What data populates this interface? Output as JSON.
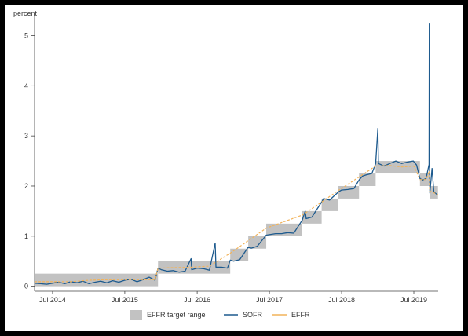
{
  "chart_data": {
    "type": "line",
    "ylabel": "percent",
    "ylim": [
      -0.1,
      5.4
    ],
    "y_ticks": [
      "0",
      "1",
      "2",
      "3",
      "4",
      "5"
    ],
    "y_tick_values": [
      0,
      1,
      2,
      3,
      4,
      5
    ],
    "x_ticks": [
      "Jul 2014",
      "Jul 2015",
      "Jul 2016",
      "Jul 2017",
      "Jul 2018",
      "Jul 2019"
    ],
    "x_tick_values": [
      "2014-07-01",
      "2015-07-01",
      "2016-07-01",
      "2017-07-01",
      "2018-07-01",
      "2019-07-01"
    ],
    "xlim": [
      "2014-04-01",
      "2019-11-01"
    ],
    "grid": false,
    "legend_position": "bottom",
    "legend": [
      {
        "label": "EFFR target range",
        "kind": "area"
      },
      {
        "label": "SOFR",
        "kind": "line"
      },
      {
        "label": "EFFR",
        "kind": "line"
      }
    ],
    "colors": {
      "target_range": "#c2c2c2",
      "sofr": "#1d5a8e",
      "effr": "#f2b35a",
      "frame": "#000000"
    },
    "target_range": [
      {
        "start": "2014-04-01",
        "end": "2015-12-16",
        "low": 0.0,
        "high": 0.25
      },
      {
        "start": "2015-12-16",
        "end": "2016-12-15",
        "low": 0.25,
        "high": 0.5
      },
      {
        "start": "2016-12-15",
        "end": "2017-03-16",
        "low": 0.5,
        "high": 0.75
      },
      {
        "start": "2017-03-16",
        "end": "2017-06-15",
        "low": 0.75,
        "high": 1.0
      },
      {
        "start": "2017-06-15",
        "end": "2017-12-14",
        "low": 1.0,
        "high": 1.25
      },
      {
        "start": "2017-12-14",
        "end": "2018-03-22",
        "low": 1.25,
        "high": 1.5
      },
      {
        "start": "2018-03-22",
        "end": "2018-06-14",
        "low": 1.5,
        "high": 1.75
      },
      {
        "start": "2018-06-14",
        "end": "2018-09-27",
        "low": 1.75,
        "high": 2.0
      },
      {
        "start": "2018-09-27",
        "end": "2018-12-20",
        "low": 2.0,
        "high": 2.25
      },
      {
        "start": "2018-12-20",
        "end": "2019-08-01",
        "low": 2.25,
        "high": 2.5
      },
      {
        "start": "2019-08-01",
        "end": "2019-09-19",
        "low": 2.0,
        "high": 2.25
      },
      {
        "start": "2019-09-19",
        "end": "2019-10-31",
        "low": 1.75,
        "high": 2.0
      }
    ],
    "series": [
      {
        "name": "SOFR",
        "points": [
          [
            "2014-04-01",
            0.06
          ],
          [
            "2014-05-01",
            0.05
          ],
          [
            "2014-06-01",
            0.04
          ],
          [
            "2014-07-01",
            0.06
          ],
          [
            "2014-08-01",
            0.08
          ],
          [
            "2014-09-01",
            0.05
          ],
          [
            "2014-10-01",
            0.09
          ],
          [
            "2014-11-01",
            0.07
          ],
          [
            "2014-12-01",
            0.1
          ],
          [
            "2015-01-01",
            0.05
          ],
          [
            "2015-02-01",
            0.08
          ],
          [
            "2015-03-01",
            0.1
          ],
          [
            "2015-04-01",
            0.07
          ],
          [
            "2015-05-01",
            0.11
          ],
          [
            "2015-06-01",
            0.08
          ],
          [
            "2015-07-01",
            0.12
          ],
          [
            "2015-08-01",
            0.14
          ],
          [
            "2015-09-01",
            0.09
          ],
          [
            "2015-10-01",
            0.13
          ],
          [
            "2015-11-01",
            0.18
          ],
          [
            "2015-12-01",
            0.12
          ],
          [
            "2015-12-16",
            0.36
          ],
          [
            "2016-01-01",
            0.33
          ],
          [
            "2016-02-01",
            0.3
          ],
          [
            "2016-03-01",
            0.31
          ],
          [
            "2016-04-01",
            0.28
          ],
          [
            "2016-05-01",
            0.3
          ],
          [
            "2016-05-31",
            0.55
          ],
          [
            "2016-06-03",
            0.33
          ],
          [
            "2016-07-01",
            0.36
          ],
          [
            "2016-08-01",
            0.35
          ],
          [
            "2016-09-01",
            0.32
          ],
          [
            "2016-09-30",
            0.86
          ],
          [
            "2016-10-04",
            0.38
          ],
          [
            "2016-11-01",
            0.38
          ],
          [
            "2016-12-01",
            0.36
          ],
          [
            "2016-12-15",
            0.52
          ],
          [
            "2017-01-01",
            0.5
          ],
          [
            "2017-02-01",
            0.53
          ],
          [
            "2017-03-16",
            0.78
          ],
          [
            "2017-04-01",
            0.76
          ],
          [
            "2017-05-01",
            0.8
          ],
          [
            "2017-06-15",
            1.02
          ],
          [
            "2017-07-01",
            1.03
          ],
          [
            "2017-08-01",
            1.05
          ],
          [
            "2017-09-01",
            1.05
          ],
          [
            "2017-10-01",
            1.07
          ],
          [
            "2017-11-01",
            1.06
          ],
          [
            "2017-12-14",
            1.32
          ],
          [
            "2017-12-29",
            1.5
          ],
          [
            "2018-01-03",
            1.35
          ],
          [
            "2018-02-01",
            1.38
          ],
          [
            "2018-03-22",
            1.68
          ],
          [
            "2018-04-01",
            1.75
          ],
          [
            "2018-05-01",
            1.72
          ],
          [
            "2018-06-14",
            1.88
          ],
          [
            "2018-07-01",
            1.92
          ],
          [
            "2018-08-01",
            1.93
          ],
          [
            "2018-09-01",
            1.95
          ],
          [
            "2018-09-27",
            2.12
          ],
          [
            "2018-10-15",
            2.2
          ],
          [
            "2018-11-01",
            2.22
          ],
          [
            "2018-12-01",
            2.25
          ],
          [
            "2018-12-20",
            2.45
          ],
          [
            "2018-12-31",
            3.15
          ],
          [
            "2019-01-03",
            2.45
          ],
          [
            "2019-02-01",
            2.4
          ],
          [
            "2019-03-01",
            2.45
          ],
          [
            "2019-04-01",
            2.5
          ],
          [
            "2019-05-01",
            2.45
          ],
          [
            "2019-06-01",
            2.48
          ],
          [
            "2019-06-28",
            2.5
          ],
          [
            "2019-07-15",
            2.42
          ],
          [
            "2019-08-01",
            2.15
          ],
          [
            "2019-08-15",
            2.12
          ],
          [
            "2019-09-01",
            2.15
          ],
          [
            "2019-09-16",
            2.43
          ],
          [
            "2019-09-17",
            5.25
          ],
          [
            "2019-09-18",
            2.55
          ],
          [
            "2019-09-20",
            1.86
          ],
          [
            "2019-10-01",
            2.35
          ],
          [
            "2019-10-10",
            1.88
          ],
          [
            "2019-10-31",
            1.82
          ]
        ]
      },
      {
        "name": "EFFR",
        "points": [
          [
            "2014-04-01",
            0.09
          ],
          [
            "2014-07-01",
            0.09
          ],
          [
            "2014-10-01",
            0.09
          ],
          [
            "2015-01-01",
            0.12
          ],
          [
            "2015-04-01",
            0.13
          ],
          [
            "2015-07-01",
            0.13
          ],
          [
            "2015-10-01",
            0.13
          ],
          [
            "2015-12-01",
            0.13
          ],
          [
            "2015-12-16",
            0.36
          ],
          [
            "2016-03-01",
            0.37
          ],
          [
            "2016-06-01",
            0.38
          ],
          [
            "2016-09-01",
            0.4
          ],
          [
            "2016-12-15",
            0.66
          ],
          [
            "2017-03-16",
            0.91
          ],
          [
            "2017-06-15",
            1.16
          ],
          [
            "2017-12-14",
            1.42
          ],
          [
            "2018-03-22",
            1.68
          ],
          [
            "2018-06-14",
            1.91
          ],
          [
            "2018-09-27",
            2.18
          ],
          [
            "2018-12-20",
            2.4
          ],
          [
            "2019-03-01",
            2.41
          ],
          [
            "2019-05-01",
            2.38
          ],
          [
            "2019-07-01",
            2.4
          ],
          [
            "2019-08-01",
            2.13
          ],
          [
            "2019-09-01",
            2.13
          ],
          [
            "2019-09-17",
            2.3
          ],
          [
            "2019-09-19",
            1.9
          ],
          [
            "2019-10-31",
            1.83
          ]
        ]
      }
    ]
  }
}
